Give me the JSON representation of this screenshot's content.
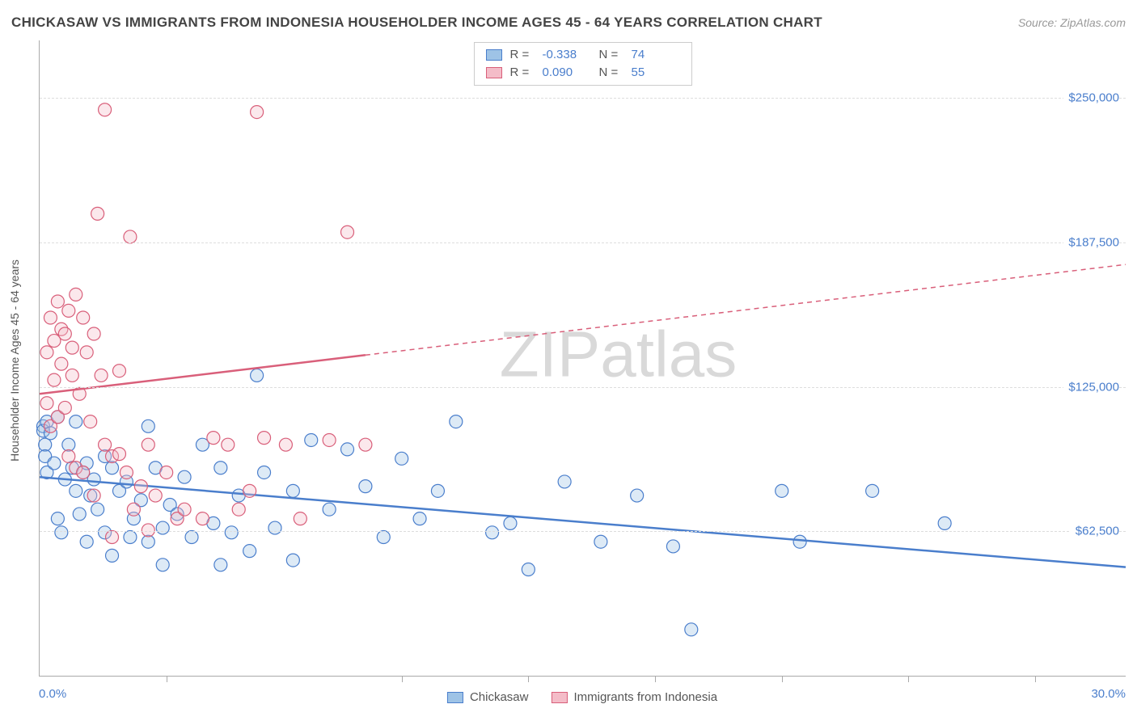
{
  "title": "CHICKASAW VS IMMIGRANTS FROM INDONESIA HOUSEHOLDER INCOME AGES 45 - 64 YEARS CORRELATION CHART",
  "source": "Source: ZipAtlas.com",
  "watermark_a": "ZIP",
  "watermark_b": "atlas",
  "y_axis_title": "Householder Income Ages 45 - 64 years",
  "chart": {
    "type": "scatter",
    "xlim": [
      0,
      30
    ],
    "ylim": [
      0,
      275000
    ],
    "x_ticks": [
      3.5,
      10.0,
      13.5,
      17.0,
      20.5,
      24.0,
      27.5
    ],
    "x_label_min": "0.0%",
    "x_label_max": "30.0%",
    "y_gridlines": [
      62500,
      125000,
      187500,
      250000
    ],
    "y_tick_labels": [
      "$62,500",
      "$125,000",
      "$187,500",
      "$250,000"
    ],
    "background_color": "#ffffff",
    "grid_color": "#dddddd",
    "point_radius": 8,
    "axis_color": "#aaaaaa",
    "label_color": "#4a7ecc",
    "title_color": "#444444",
    "title_fontsize": 17,
    "tick_fontsize": 15
  },
  "series": [
    {
      "name": "Chickasaw",
      "fill_color": "#9ec3e6",
      "stroke_color": "#4a7ecc",
      "r_label": "R =",
      "r_value": "-0.338",
      "n_label": "N =",
      "n_value": "74",
      "trend": {
        "x1": 0,
        "y1": 86000,
        "x2": 30,
        "y2": 47000,
        "solid_until_x": 30
      },
      "points": [
        [
          0.1,
          108000
        ],
        [
          0.1,
          106000
        ],
        [
          0.15,
          100000
        ],
        [
          0.15,
          95000
        ],
        [
          0.2,
          110000
        ],
        [
          0.2,
          88000
        ],
        [
          0.3,
          105000
        ],
        [
          0.4,
          92000
        ],
        [
          0.5,
          112000
        ],
        [
          0.5,
          68000
        ],
        [
          0.6,
          62000
        ],
        [
          0.7,
          85000
        ],
        [
          0.8,
          100000
        ],
        [
          0.9,
          90000
        ],
        [
          1.0,
          110000
        ],
        [
          1.0,
          80000
        ],
        [
          1.1,
          70000
        ],
        [
          1.2,
          88000
        ],
        [
          1.3,
          92000
        ],
        [
          1.3,
          58000
        ],
        [
          1.4,
          78000
        ],
        [
          1.5,
          85000
        ],
        [
          1.6,
          72000
        ],
        [
          1.8,
          95000
        ],
        [
          1.8,
          62000
        ],
        [
          2.0,
          90000
        ],
        [
          2.0,
          52000
        ],
        [
          2.2,
          80000
        ],
        [
          2.4,
          84000
        ],
        [
          2.5,
          60000
        ],
        [
          2.6,
          68000
        ],
        [
          2.8,
          76000
        ],
        [
          3.0,
          108000
        ],
        [
          3.0,
          58000
        ],
        [
          3.2,
          90000
        ],
        [
          3.4,
          64000
        ],
        [
          3.4,
          48000
        ],
        [
          3.6,
          74000
        ],
        [
          3.8,
          70000
        ],
        [
          4.0,
          86000
        ],
        [
          4.2,
          60000
        ],
        [
          4.5,
          100000
        ],
        [
          4.8,
          66000
        ],
        [
          5.0,
          90000
        ],
        [
          5.0,
          48000
        ],
        [
          5.3,
          62000
        ],
        [
          5.5,
          78000
        ],
        [
          5.8,
          54000
        ],
        [
          6.0,
          130000
        ],
        [
          6.2,
          88000
        ],
        [
          6.5,
          64000
        ],
        [
          7.0,
          80000
        ],
        [
          7.0,
          50000
        ],
        [
          7.5,
          102000
        ],
        [
          8.0,
          72000
        ],
        [
          8.5,
          98000
        ],
        [
          9.0,
          82000
        ],
        [
          9.5,
          60000
        ],
        [
          10.0,
          94000
        ],
        [
          10.5,
          68000
        ],
        [
          11.0,
          80000
        ],
        [
          11.5,
          110000
        ],
        [
          12.5,
          62000
        ],
        [
          13.0,
          66000
        ],
        [
          13.5,
          46000
        ],
        [
          14.5,
          84000
        ],
        [
          15.5,
          58000
        ],
        [
          16.5,
          78000
        ],
        [
          17.5,
          56000
        ],
        [
          18.0,
          20000
        ],
        [
          20.5,
          80000
        ],
        [
          21.0,
          58000
        ],
        [
          23.0,
          80000
        ],
        [
          25.0,
          66000
        ]
      ]
    },
    {
      "name": "Immigrants from Indonesia",
      "fill_color": "#f4bcc8",
      "stroke_color": "#d95f7a",
      "r_label": "R =",
      "r_value": "0.090",
      "n_label": "N =",
      "n_value": "55",
      "trend": {
        "x1": 0,
        "y1": 122000,
        "x2": 30,
        "y2": 178000,
        "solid_until_x": 9
      },
      "points": [
        [
          0.2,
          118000
        ],
        [
          0.2,
          140000
        ],
        [
          0.3,
          155000
        ],
        [
          0.3,
          108000
        ],
        [
          0.4,
          145000
        ],
        [
          0.4,
          128000
        ],
        [
          0.5,
          162000
        ],
        [
          0.5,
          112000
        ],
        [
          0.6,
          150000
        ],
        [
          0.6,
          135000
        ],
        [
          0.7,
          148000
        ],
        [
          0.7,
          116000
        ],
        [
          0.8,
          158000
        ],
        [
          0.8,
          95000
        ],
        [
          0.9,
          142000
        ],
        [
          0.9,
          130000
        ],
        [
          1.0,
          165000
        ],
        [
          1.0,
          90000
        ],
        [
          1.1,
          122000
        ],
        [
          1.2,
          155000
        ],
        [
          1.2,
          88000
        ],
        [
          1.3,
          140000
        ],
        [
          1.4,
          110000
        ],
        [
          1.5,
          148000
        ],
        [
          1.5,
          78000
        ],
        [
          1.6,
          200000
        ],
        [
          1.7,
          130000
        ],
        [
          1.8,
          100000
        ],
        [
          1.8,
          245000
        ],
        [
          2.0,
          95000
        ],
        [
          2.0,
          60000
        ],
        [
          2.2,
          132000
        ],
        [
          2.2,
          96000
        ],
        [
          2.4,
          88000
        ],
        [
          2.5,
          190000
        ],
        [
          2.6,
          72000
        ],
        [
          2.8,
          82000
        ],
        [
          3.0,
          100000
        ],
        [
          3.0,
          63000
        ],
        [
          3.2,
          78000
        ],
        [
          3.5,
          88000
        ],
        [
          3.8,
          68000
        ],
        [
          4.0,
          72000
        ],
        [
          4.5,
          68000
        ],
        [
          4.8,
          103000
        ],
        [
          5.2,
          100000
        ],
        [
          5.5,
          72000
        ],
        [
          5.8,
          80000
        ],
        [
          6.0,
          244000
        ],
        [
          6.2,
          103000
        ],
        [
          6.8,
          100000
        ],
        [
          7.2,
          68000
        ],
        [
          8.0,
          102000
        ],
        [
          8.5,
          192000
        ],
        [
          9.0,
          100000
        ]
      ]
    }
  ]
}
